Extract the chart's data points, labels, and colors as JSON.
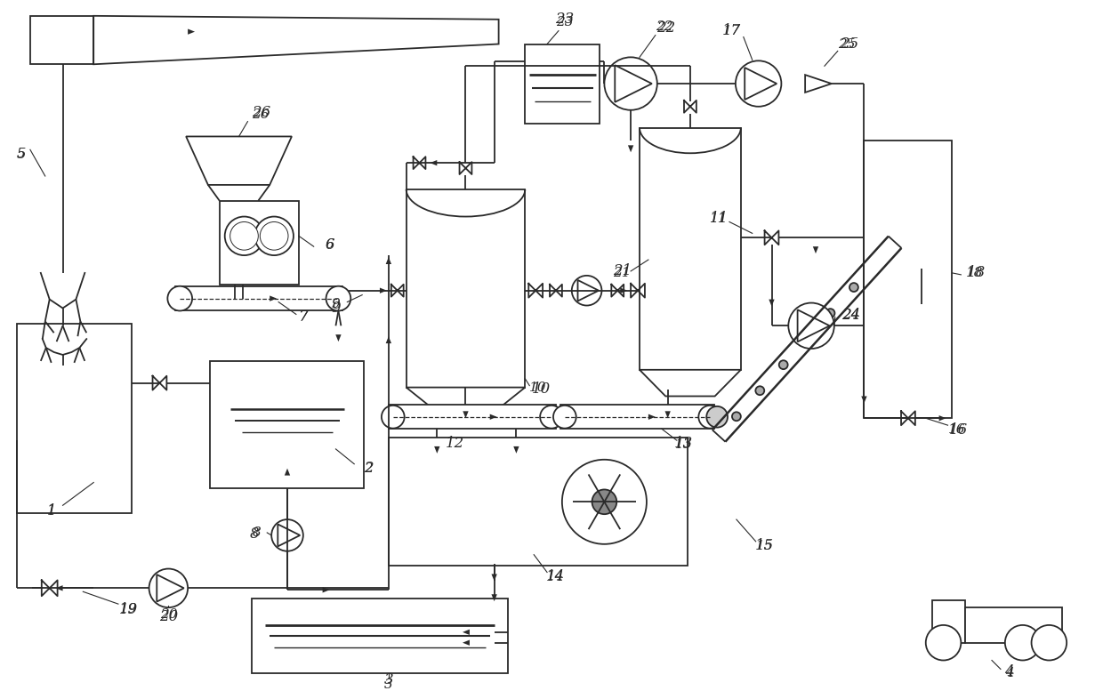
{
  "bg": "#ffffff",
  "lc": "#2a2a2a",
  "lw": 1.3,
  "figsize": [
    12.4,
    7.77
  ],
  "dpi": 100
}
